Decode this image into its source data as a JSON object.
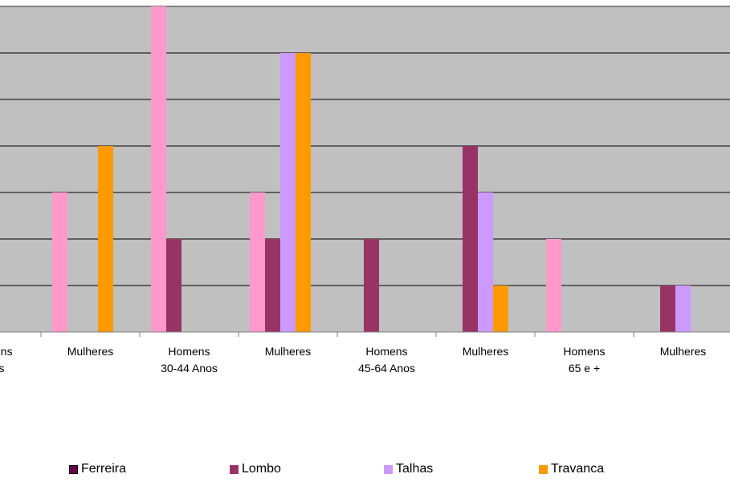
{
  "chart_data": {
    "type": "bar",
    "categories": [
      [
        "Homens",
        "Anos"
      ],
      [
        "Mulheres"
      ],
      [
        "Homens",
        "30-44 Anos"
      ],
      [
        "Mulheres"
      ],
      [
        "Homens",
        "45-64 Anos"
      ],
      [
        "Mulheres"
      ],
      [
        "Homens",
        "65 e +"
      ],
      [
        "Mulheres"
      ]
    ],
    "series": [
      {
        "name": "Ferreira",
        "color": "#66004d",
        "values": [
          0,
          3,
          7,
          3,
          0,
          0,
          2,
          0
        ]
      },
      {
        "name": "Lombo",
        "color": "#993366",
        "values": [
          0,
          0,
          2,
          2,
          2,
          4,
          0,
          1
        ]
      },
      {
        "name": "Talhas",
        "color": "#cc99ff",
        "values": [
          0,
          0,
          0,
          6,
          0,
          3,
          0,
          1
        ]
      },
      {
        "name": "Travanca",
        "color": "#ff9900",
        "values": [
          0,
          4,
          0,
          6,
          0,
          1,
          0,
          0
        ]
      }
    ],
    "bar_colors_displayed": [
      "#ff99cc",
      "#993366",
      "#cc99ff",
      "#ff9900"
    ],
    "ylim": [
      0,
      7
    ],
    "y_gridlines": [
      1,
      2,
      3,
      4,
      5,
      6,
      7
    ],
    "plot_background": "#c0c0c0",
    "grid": true,
    "legend_position": "bottom",
    "title": "",
    "xlabel": "",
    "ylabel": ""
  }
}
